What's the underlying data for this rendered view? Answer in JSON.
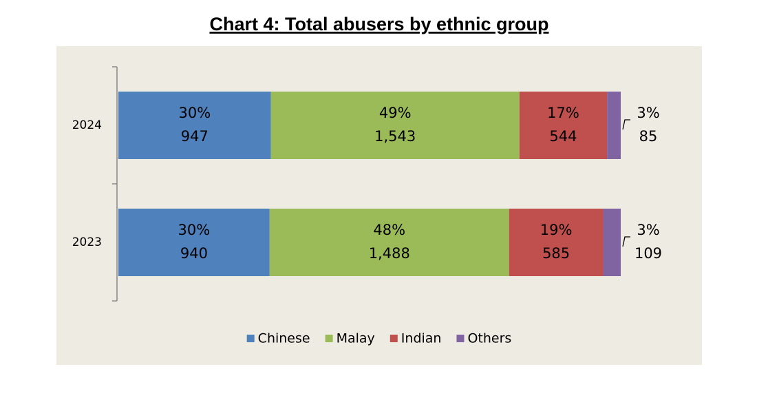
{
  "chart_data": {
    "type": "stacked_bar",
    "orientation": "horizontal",
    "stacked": "percent",
    "title": "Chart 4: Total abusers by ethnic group",
    "categories": [
      "2024",
      "2023"
    ],
    "series": [
      {
        "name": "Chinese",
        "color": "#4f81bd",
        "values": [
          947,
          940
        ],
        "value_labels": [
          "947",
          "940"
        ],
        "percent_labels": [
          "30%",
          "30%"
        ]
      },
      {
        "name": "Malay",
        "color": "#9bbb59",
        "values": [
          1543,
          1488
        ],
        "value_labels": [
          "1,543",
          "1,488"
        ],
        "percent_labels": [
          "49%",
          "48%"
        ]
      },
      {
        "name": "Indian",
        "color": "#c0504d",
        "values": [
          544,
          585
        ],
        "value_labels": [
          "544",
          "585"
        ],
        "percent_labels": [
          "17%",
          "19%"
        ]
      },
      {
        "name": "Others",
        "color": "#8064a2",
        "values": [
          85,
          109
        ],
        "value_labels": [
          "85",
          "109"
        ],
        "percent_labels": [
          "3%",
          "3%"
        ]
      }
    ],
    "legend": "bottom"
  }
}
